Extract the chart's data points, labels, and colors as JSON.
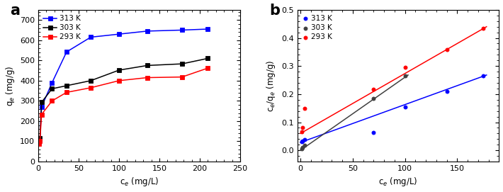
{
  "panel_a": {
    "title": "a",
    "xlabel": "c$_e$ (mg/L)",
    "ylabel": "q$_e$ (mg/g)",
    "xlim": [
      0,
      250
    ],
    "ylim": [
      0,
      750
    ],
    "xticks": [
      0,
      50,
      100,
      150,
      200,
      250
    ],
    "yticks": [
      0,
      100,
      200,
      300,
      400,
      500,
      600,
      700
    ],
    "series": [
      {
        "label": "313 K",
        "color": "#0000FF",
        "marker": "s",
        "x": [
          0.5,
          2,
          4,
          17,
          35,
          65,
          100,
          135,
          178,
          210
        ],
        "y": [
          95,
          108,
          270,
          390,
          542,
          615,
          630,
          645,
          650,
          655
        ]
      },
      {
        "label": "303 K",
        "color": "#000000",
        "marker": "s",
        "x": [
          0.5,
          2,
          4,
          17,
          35,
          65,
          100,
          135,
          178,
          210
        ],
        "y": [
          108,
          115,
          293,
          360,
          375,
          400,
          452,
          475,
          483,
          510
        ]
      },
      {
        "label": "293 K",
        "color": "#FF0000",
        "marker": "s",
        "x": [
          0.5,
          2,
          4,
          17,
          35,
          65,
          100,
          135,
          178,
          210
        ],
        "y": [
          88,
          100,
          233,
          300,
          342,
          365,
          400,
          415,
          418,
          462
        ]
      }
    ]
  },
  "panel_b": {
    "title": "b",
    "xlabel": "c$_e$ (mg/L)",
    "ylabel": "c$_e$/q$_e$ (mg/g)",
    "xlim": [
      -3,
      190
    ],
    "ylim": [
      -0.04,
      0.5
    ],
    "xticks": [
      0,
      50,
      100,
      150
    ],
    "yticks": [
      0.0,
      0.1,
      0.2,
      0.3,
      0.4,
      0.5
    ],
    "series": [
      {
        "label": "313 K",
        "color": "#0000FF",
        "marker": "o",
        "x": [
          1,
          2,
          4,
          70,
          100,
          140,
          175
        ],
        "y": [
          0.03,
          0.032,
          0.038,
          0.063,
          0.155,
          0.21,
          0.265
        ],
        "fit_x": [
          0,
          178
        ],
        "fit_y": [
          0.028,
          0.268
        ]
      },
      {
        "label": "303 K",
        "color": "#404040",
        "marker": "o",
        "x": [
          1,
          2,
          4,
          70,
          100
        ],
        "y": [
          0.005,
          0.01,
          0.018,
          0.185,
          0.265
        ],
        "fit_x": [
          0,
          103
        ],
        "fit_y": [
          0.0,
          0.268
        ]
      },
      {
        "label": "293 K",
        "color": "#FF0000",
        "marker": "o",
        "x": [
          1,
          2,
          4,
          70,
          100,
          140,
          175
        ],
        "y": [
          0.065,
          0.08,
          0.148,
          0.218,
          0.295,
          0.358,
          0.435
        ],
        "fit_x": [
          0,
          178
        ],
        "fit_y": [
          0.06,
          0.44
        ]
      }
    ]
  },
  "fig_width": 7.1,
  "fig_height": 2.71,
  "dpi": 100
}
